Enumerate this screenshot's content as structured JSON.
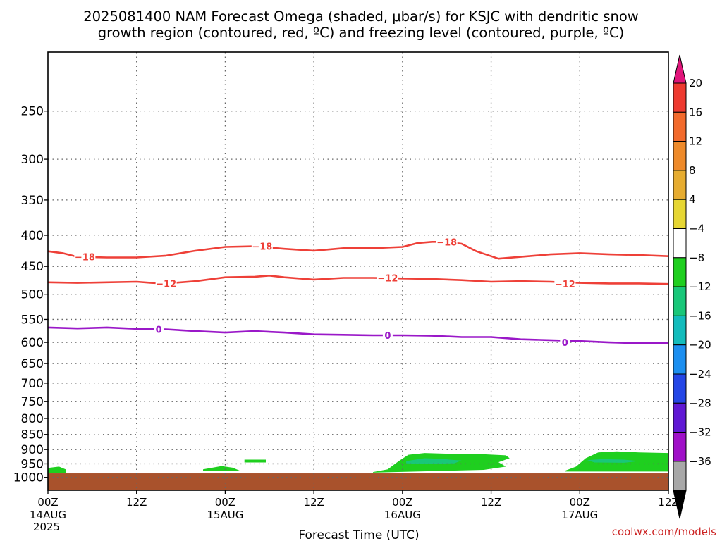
{
  "chart_data": {
    "type": "area",
    "title_lines": [
      "2025081400 NAM Forecast Omega (shaded, μbar/s) for KSJC with dendritic snow",
      "growth region (contoured, red, ºC) and freezing level (contoured, purple, ºC)"
    ],
    "xlabel": "Forecast Time (UTC)",
    "credit": "coolwx.com/models",
    "x_range_hours": [
      0,
      84
    ],
    "y_axis": {
      "scale": "log-pressure",
      "range_hPa": [
        200,
        1050
      ],
      "ticks": [
        250,
        300,
        350,
        400,
        450,
        500,
        550,
        600,
        650,
        700,
        750,
        800,
        850,
        900,
        950,
        1000
      ]
    },
    "x_ticks": [
      {
        "h": 0,
        "label": "00Z",
        "date": "14AUG",
        "year": "2025"
      },
      {
        "h": 12,
        "label": "12Z",
        "date": "",
        "year": ""
      },
      {
        "h": 24,
        "label": "00Z",
        "date": "15AUG",
        "year": ""
      },
      {
        "h": 36,
        "label": "12Z",
        "date": "",
        "year": ""
      },
      {
        "h": 48,
        "label": "00Z",
        "date": "16AUG",
        "year": ""
      },
      {
        "h": 60,
        "label": "12Z",
        "date": "",
        "year": ""
      },
      {
        "h": 72,
        "label": "00Z",
        "date": "17AUG",
        "year": ""
      },
      {
        "h": 84,
        "label": "12Z",
        "date": "",
        "year": ""
      }
    ],
    "grid": true,
    "colorbar": {
      "labels": [
        "20",
        "16",
        "12",
        "8",
        "4",
        "−4",
        "−8",
        "−12",
        "−16",
        "−20",
        "−24",
        "−28",
        "−32",
        "−36"
      ],
      "top_cap": "#e0157a",
      "bottom_cap": "#000000",
      "colors": [
        "#ee3a30",
        "#f26a2c",
        "#ee8a2a",
        "#e6ac30",
        "#e6d633",
        "#ffffff",
        "#1fcf1f",
        "#19c779",
        "#13bcbc",
        "#1c8ff0",
        "#2446e6",
        "#6018d4",
        "#a010c8",
        "#a8a8a8"
      ]
    },
    "contours": [
      {
        "name": "-18",
        "color": "#ee4038",
        "label": "−18",
        "points": [
          [
            0,
            425
          ],
          [
            2,
            428
          ],
          [
            4,
            434
          ],
          [
            8,
            435
          ],
          [
            12,
            435
          ],
          [
            16,
            432
          ],
          [
            20,
            424
          ],
          [
            24,
            418
          ],
          [
            28,
            417
          ],
          [
            32,
            421
          ],
          [
            36,
            424
          ],
          [
            40,
            420
          ],
          [
            44,
            420
          ],
          [
            48,
            418
          ],
          [
            50,
            412
          ],
          [
            52,
            410
          ],
          [
            54,
            410
          ],
          [
            56,
            413
          ],
          [
            58,
            425
          ],
          [
            60,
            433
          ],
          [
            61,
            437
          ],
          [
            64,
            434
          ],
          [
            68,
            430
          ],
          [
            72,
            428
          ],
          [
            76,
            430
          ],
          [
            80,
            431
          ],
          [
            84,
            433
          ]
        ],
        "label_at": [
          [
            5,
            434
          ],
          [
            29,
            417
          ],
          [
            54,
            410
          ]
        ]
      },
      {
        "name": "-12",
        "color": "#ee4038",
        "label": "−12",
        "points": [
          [
            0,
            478
          ],
          [
            4,
            479
          ],
          [
            8,
            478
          ],
          [
            12,
            477
          ],
          [
            14,
            479
          ],
          [
            16,
            480
          ],
          [
            18,
            478
          ],
          [
            20,
            476
          ],
          [
            24,
            469
          ],
          [
            28,
            468
          ],
          [
            30,
            466
          ],
          [
            32,
            469
          ],
          [
            36,
            473
          ],
          [
            40,
            470
          ],
          [
            44,
            470
          ],
          [
            48,
            471
          ],
          [
            52,
            472
          ],
          [
            56,
            474
          ],
          [
            60,
            477
          ],
          [
            64,
            476
          ],
          [
            68,
            477
          ],
          [
            72,
            479
          ],
          [
            76,
            480
          ],
          [
            80,
            480
          ],
          [
            84,
            481
          ]
        ],
        "label_at": [
          [
            16,
            480
          ],
          [
            46,
            470
          ],
          [
            70,
            481
          ]
        ]
      },
      {
        "name": "0",
        "color": "#9a18c8",
        "label": "0",
        "points": [
          [
            0,
            567
          ],
          [
            4,
            569
          ],
          [
            8,
            567
          ],
          [
            12,
            570
          ],
          [
            16,
            571
          ],
          [
            20,
            575
          ],
          [
            24,
            578
          ],
          [
            28,
            575
          ],
          [
            32,
            578
          ],
          [
            36,
            582
          ],
          [
            40,
            583
          ],
          [
            44,
            584
          ],
          [
            48,
            584
          ],
          [
            52,
            585
          ],
          [
            56,
            588
          ],
          [
            60,
            588
          ],
          [
            64,
            593
          ],
          [
            68,
            595
          ],
          [
            72,
            597
          ],
          [
            76,
            600
          ],
          [
            80,
            602
          ],
          [
            84,
            601
          ]
        ],
        "label_at": [
          [
            15,
            571
          ],
          [
            46,
            584
          ],
          [
            70,
            600
          ]
        ]
      }
    ],
    "shading": [
      {
        "level": "−4 to −8",
        "color": "#1fcf1f",
        "regions": [
          [
            [
              0,
              965
            ],
            [
              1.5,
              960
            ],
            [
              2.4,
              970
            ],
            [
              2.4,
              985
            ],
            [
              0,
              985
            ]
          ],
          [
            [
              21,
              970
            ],
            [
              23.5,
              958
            ],
            [
              25,
              964
            ],
            [
              26,
              975
            ],
            [
              21,
              975
            ]
          ],
          [
            [
              26.6,
              935
            ],
            [
              29.5,
              935
            ],
            [
              29.5,
              945
            ],
            [
              26.6,
              945
            ]
          ],
          [
            [
              44,
              980
            ],
            [
              46,
              970
            ],
            [
              47.5,
              940
            ],
            [
              48.8,
              918
            ],
            [
              51,
              912
            ],
            [
              55,
              915
            ],
            [
              58,
              915
            ],
            [
              62,
              920
            ],
            [
              62.5,
              930
            ],
            [
              61,
              944
            ],
            [
              62,
              960
            ],
            [
              59,
              972
            ],
            [
              44,
              982
            ]
          ],
          [
            [
              70,
              975
            ],
            [
              71.5,
              960
            ],
            [
              72.8,
              930
            ],
            [
              74.5,
              910
            ],
            [
              77,
              906
            ],
            [
              80,
              910
            ],
            [
              84,
              912
            ],
            [
              84,
              978
            ],
            [
              70,
              978
            ]
          ]
        ]
      },
      {
        "level": "−8 to −12",
        "color": "#19c779",
        "regions": [
          [
            [
              48.5,
              940
            ],
            [
              51,
              930
            ],
            [
              53,
              932
            ],
            [
              56,
              938
            ],
            [
              55,
              948
            ],
            [
              51,
              950
            ],
            [
              48.5,
              948
            ]
          ],
          [
            [
              73,
              937
            ],
            [
              75,
              933
            ],
            [
              78,
              935
            ],
            [
              80,
              940
            ],
            [
              78,
              946
            ],
            [
              74,
              945
            ]
          ]
        ]
      }
    ],
    "ground": {
      "color": "#a9522c",
      "top_hPa": 985
    }
  }
}
